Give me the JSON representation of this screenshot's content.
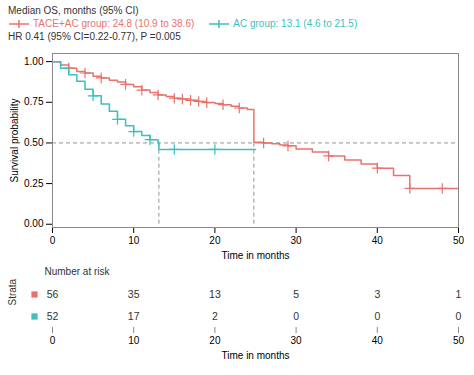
{
  "chart_data": {
    "type": "line",
    "line_style": "step",
    "xlabel": "Time in months",
    "ylabel": "Survival probability",
    "xlim": [
      0,
      50
    ],
    "ylim": [
      -0.02,
      1.05
    ],
    "xticks": [
      0,
      10,
      20,
      30,
      40,
      50
    ],
    "yticks": [
      {
        "value": 0.0,
        "label": "0.00"
      },
      {
        "value": 0.25,
        "label": "0.25"
      },
      {
        "value": 0.5,
        "label": "0.50"
      },
      {
        "value": 0.75,
        "label": "0.75"
      },
      {
        "value": 1.0,
        "label": "1.00"
      }
    ],
    "legend_title": "Median OS, months (95% CI)",
    "annotations": [
      "HR 0.41 (95% CI=0.22-0.77), P =0.005"
    ],
    "median_guides": {
      "y": 0.5,
      "y_from": 0.0
    },
    "series": [
      {
        "name": "TACE+AC group: 24.8 (10.9 to 38.6)",
        "color": "#E8736C",
        "marker": "plus",
        "median": 24.8,
        "x": [
          0,
          1,
          2,
          3,
          4,
          5,
          6,
          7,
          8,
          9,
          10,
          11,
          12,
          13,
          14,
          15,
          16,
          17,
          18,
          19,
          20,
          21,
          22,
          23,
          24,
          24.8,
          26,
          27,
          28,
          29,
          30,
          32,
          34,
          36,
          38,
          40,
          42,
          44,
          46,
          48,
          50
        ],
        "values": [
          1.0,
          0.98,
          0.96,
          0.94,
          0.93,
          0.91,
          0.9,
          0.885,
          0.875,
          0.86,
          0.845,
          0.825,
          0.81,
          0.795,
          0.785,
          0.775,
          0.77,
          0.762,
          0.755,
          0.748,
          0.742,
          0.735,
          0.725,
          0.715,
          0.705,
          0.505,
          0.5,
          0.495,
          0.488,
          0.482,
          0.462,
          0.445,
          0.42,
          0.395,
          0.37,
          0.345,
          0.3,
          0.22,
          0.22,
          0.22,
          0.22
        ],
        "censored": {
          "x": [
            2,
            4,
            6,
            9,
            11,
            13,
            15,
            16,
            17,
            18,
            19,
            21,
            23,
            26,
            29,
            34,
            40,
            44,
            48
          ],
          "values": [
            0.96,
            0.93,
            0.9,
            0.86,
            0.825,
            0.795,
            0.775,
            0.77,
            0.762,
            0.755,
            0.748,
            0.735,
            0.715,
            0.5,
            0.482,
            0.42,
            0.345,
            0.22,
            0.22
          ]
        }
      },
      {
        "name": "AC group: 13.1 (4.6 to 21.5)",
        "color": "#3BBFBF",
        "marker": "plus",
        "median": 13.1,
        "x": [
          0,
          1,
          2,
          3,
          4,
          5,
          6,
          7,
          8,
          9,
          10,
          11,
          12,
          13,
          13.1,
          15,
          20,
          25
        ],
        "values": [
          1.0,
          0.96,
          0.92,
          0.88,
          0.83,
          0.79,
          0.74,
          0.695,
          0.645,
          0.605,
          0.57,
          0.545,
          0.52,
          0.505,
          0.46,
          0.46,
          0.46,
          0.46
        ],
        "censored": {
          "x": [
            5,
            8,
            10,
            12,
            15,
            20
          ],
          "values": [
            0.79,
            0.645,
            0.57,
            0.52,
            0.46,
            0.46
          ]
        }
      }
    ],
    "risk_table": {
      "title": "Number at risk",
      "row_label": "Strata",
      "x": [
        0,
        10,
        20,
        30,
        40,
        50
      ],
      "rows": [
        {
          "color": "#E8736C",
          "values": [
            56,
            35,
            13,
            5,
            3,
            1
          ]
        },
        {
          "color": "#3BBFBF",
          "values": [
            52,
            17,
            2,
            0,
            0,
            0
          ]
        }
      ]
    }
  }
}
